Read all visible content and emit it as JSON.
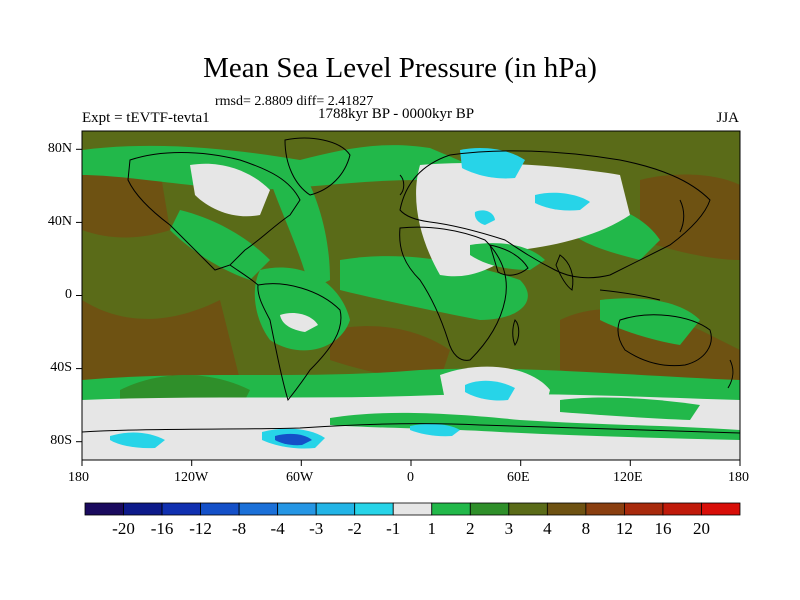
{
  "header": {
    "title": "Mean Sea Level Pressure (in hPa)",
    "stats": "rmsd= 2.8809 diff= 2.41827",
    "experiment": "Expt = tEVTF-tevta1",
    "period": "1788kyr BP - 0000kyr BP",
    "season": "JJA"
  },
  "axes": {
    "x_ticks": [
      "180",
      "120W",
      "60W",
      "0",
      "60E",
      "120E",
      "180"
    ],
    "y_ticks": [
      "80N",
      "40N",
      "0",
      "40S",
      "80S"
    ]
  },
  "colorbar": {
    "labels": [
      "-20",
      "-16",
      "-12",
      "-8",
      "-4",
      "-3",
      "-2",
      "-1",
      "1",
      "2",
      "3",
      "4",
      "8",
      "12",
      "16",
      "20"
    ],
    "colors": [
      "#1a0a5e",
      "#0d1a8a",
      "#1030b0",
      "#1450c8",
      "#1b70d8",
      "#2596e4",
      "#22b4e6",
      "#27d4e8",
      "#e6e6e6",
      "#22b84a",
      "#2f8f2a",
      "#5a6b18",
      "#6e5212",
      "#8a3f10",
      "#a82a0c",
      "#c01a0a",
      "#d80e08"
    ]
  },
  "map_colors": {
    "land_line": "#000000",
    "neutral": "#e6e6e6",
    "green": "#22b84a",
    "dark_green": "#2f8f2a",
    "olive": "#5a6b18",
    "brown": "#6e5212",
    "cyan": "#27d4e8",
    "blue": "#1450c8"
  }
}
